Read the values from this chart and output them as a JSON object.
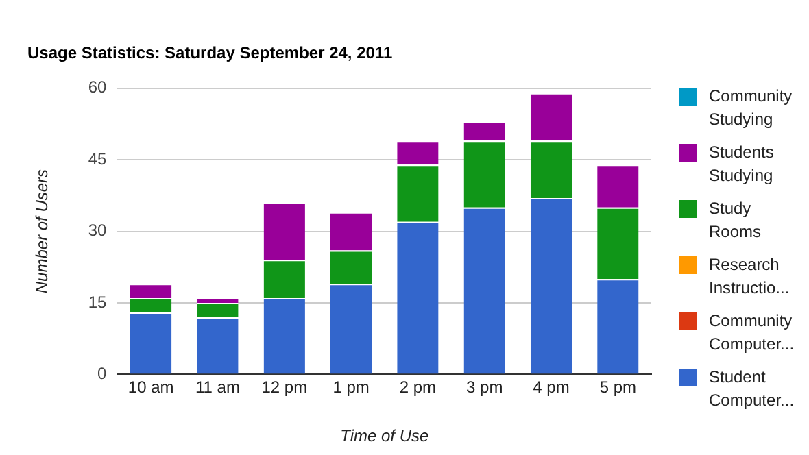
{
  "chart_data": {
    "type": "bar",
    "title": "Usage Statistics: Saturday September 24, 2011",
    "xlabel": "Time of Use",
    "ylabel": "Number of Users",
    "categories": [
      "10 am",
      "11 am",
      "12 pm",
      "1 pm",
      "2 pm",
      "3 pm",
      "4 pm",
      "5 pm"
    ],
    "stacked": true,
    "ylim": [
      0,
      60
    ],
    "yticks": [
      0,
      15,
      30,
      45,
      60
    ],
    "grid": "y",
    "legend": "right",
    "series": [
      {
        "name": "Student Computer...",
        "color": "#3366cc",
        "values": [
          13,
          12,
          16,
          19,
          32,
          35,
          37,
          20
        ]
      },
      {
        "name": "Community Computer...",
        "color": "#dc3912",
        "values": [
          0,
          0,
          0,
          0,
          0,
          0,
          0,
          0
        ]
      },
      {
        "name": "Research Instructio...",
        "color": "#ff9900",
        "values": [
          0,
          0,
          0,
          0,
          0,
          0,
          0,
          0
        ]
      },
      {
        "name": "Study Rooms",
        "color": "#109618",
        "values": [
          3,
          3,
          8,
          7,
          12,
          14,
          12,
          15
        ]
      },
      {
        "name": "Students Studying",
        "color": "#990099",
        "values": [
          3,
          1,
          12,
          8,
          5,
          4,
          10,
          9
        ]
      },
      {
        "name": "Community Studying",
        "color": "#0099c6",
        "values": [
          0,
          0,
          0,
          0,
          0,
          0,
          0,
          0
        ]
      }
    ]
  }
}
